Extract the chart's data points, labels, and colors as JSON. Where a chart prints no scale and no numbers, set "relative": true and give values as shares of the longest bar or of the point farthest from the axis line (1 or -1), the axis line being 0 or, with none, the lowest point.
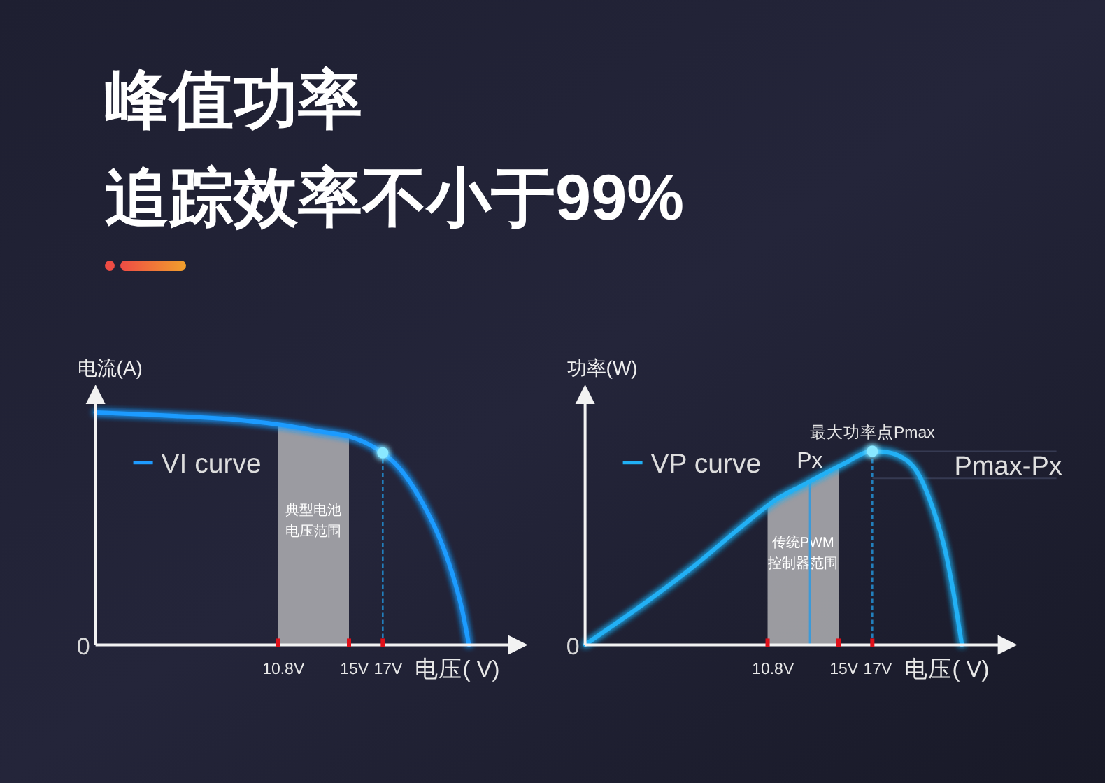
{
  "chart_data": [
    {
      "type": "line",
      "title": "峰值功率",
      "subtitle": "追踪效率不小于99%",
      "xlabel": "电压( V)",
      "ylabel": "电流(A)",
      "relative": true,
      "legend": "top left",
      "x": [
        0,
        3.2,
        5.9,
        8.7,
        11.2,
        13.1,
        15.3,
        17,
        18.1,
        19.2,
        20.3,
        21.1,
        21.7,
        22.1
      ],
      "series": [
        {
          "name": "VI curve",
          "color": "#1e9bff",
          "values": [
            1,
            0.99,
            0.98,
            0.966,
            0.944,
            0.92,
            0.89,
            0.826,
            0.75,
            0.63,
            0.47,
            0.31,
            0.15,
            0
          ]
        },
        {
          "type": "scatter",
          "color": "#8ae8ff",
          "x": [
            17
          ],
          "values": [
            0.826
          ]
        }
      ],
      "xlim": [
        0,
        25
      ],
      "xticks": [
        {
          "value": 10.8,
          "label": "10.8V"
        },
        {
          "value": 15,
          "label": "15V"
        },
        {
          "value": 17,
          "label": "17V"
        }
      ],
      "bands": [
        {
          "axis": "x",
          "from": 10.8,
          "to": 15,
          "label": "典型电池电压范围",
          "color": "#a8a8ad"
        }
      ],
      "ref_lines": [
        {
          "axis": "x",
          "value": 17,
          "color": "#2380bd",
          "line_style": "dashed"
        }
      ],
      "annotations": [
        "0"
      ]
    },
    {
      "type": "line",
      "xlabel": "电压( V)",
      "ylabel": "功率(W)",
      "relative": true,
      "legend": "top left",
      "x": [
        0,
        3.6,
        6.35,
        9.1,
        11.3,
        13,
        15.3,
        17,
        18.5,
        19.6,
        20.4,
        21.25,
        21.8,
        22.3
      ],
      "series": [
        {
          "name": "VP curve",
          "color": "#20b0f5",
          "values": [
            0,
            0.22,
            0.4,
            0.6,
            0.75,
            0.83,
            0.935,
            1,
            0.98,
            0.9,
            0.75,
            0.51,
            0.27,
            0
          ]
        },
        {
          "type": "scatter",
          "color": "#8ae8ff",
          "x": [
            17
          ],
          "values": [
            1
          ]
        }
      ],
      "xlim": [
        0,
        25
      ],
      "xticks": [
        {
          "value": 10.8,
          "label": "10.8V"
        },
        {
          "value": 15,
          "label": "15V"
        },
        {
          "value": 17,
          "label": "17V"
        }
      ],
      "bands": [
        {
          "axis": "x",
          "from": 10.8,
          "to": 15,
          "label": "传统PWM控制器范围",
          "color": "#a8a8ad"
        }
      ],
      "ref_lines": [
        {
          "axis": "x",
          "value": 17,
          "label": "最大功率点Pmax",
          "color": "#2380bd",
          "line_style": "dashed"
        },
        {
          "axis": "x",
          "value": 13.3,
          "label": "Px",
          "color": "#3d9ad8",
          "line_style": "solid"
        },
        {
          "axis": "y",
          "value": 1,
          "color": "#363a52",
          "line_style": "solid"
        },
        {
          "axis": "y",
          "value": 0.86,
          "color": "#363a52",
          "line_style": "solid"
        }
      ],
      "annotations": [
        "0",
        "Pmax-Px"
      ]
    }
  ]
}
